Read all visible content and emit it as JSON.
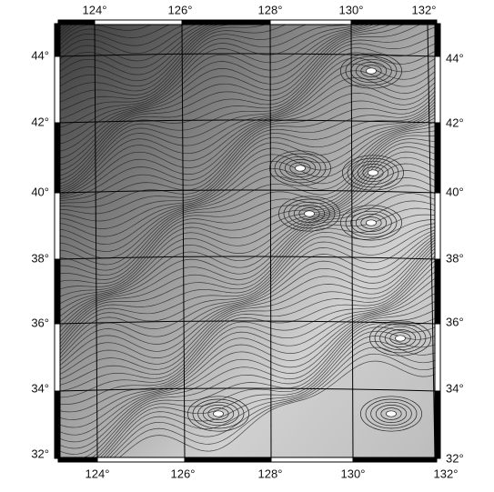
{
  "map": {
    "lon_labels_top": [
      "124°",
      "126°",
      "128°",
      "130°",
      "132°"
    ],
    "lon_labels_bottom": [
      "124°",
      "126°",
      "128°",
      "130°",
      "132°"
    ],
    "lat_labels_left": [
      "44°",
      "42°",
      "40°",
      "38°",
      "36°",
      "34°",
      "32°"
    ],
    "lat_labels_right": [
      "44°",
      "42°",
      "40°",
      "38°",
      "36°",
      "34°",
      "32°"
    ]
  }
}
